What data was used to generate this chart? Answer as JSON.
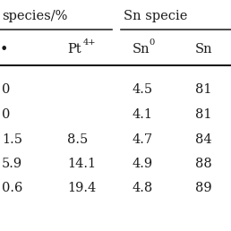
{
  "col_headers_left": "species/%",
  "col_headers_right": "Sn specie",
  "sub_headers": [
    "•",
    "Pt",
    "4+",
    "Sn",
    "0",
    "Sn"
  ],
  "rows": [
    [
      "0",
      "",
      "4.5",
      "81"
    ],
    [
      "0",
      "",
      "4.1",
      "81"
    ],
    [
      "1.5",
      "8.5",
      "4.7",
      "84"
    ],
    [
      "5.9",
      "14.1",
      "4.9",
      "88"
    ],
    [
      "0.6",
      "19.4",
      "4.8",
      "89"
    ]
  ],
  "bg_color": "#ffffff",
  "text_color": "#1a1a1a",
  "font_size": 10.5
}
